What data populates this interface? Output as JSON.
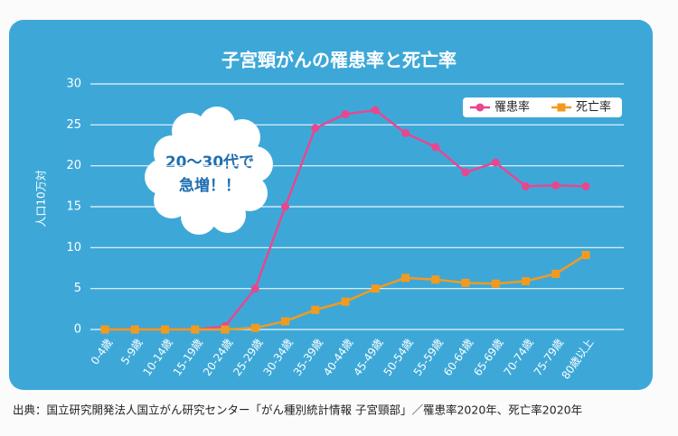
{
  "chart_data": {
    "type": "line",
    "title": "子宮頸がんの罹患率と死亡率",
    "y_label": "人口10万対",
    "annotation": [
      "20〜30代で",
      "急増！！"
    ],
    "source": "出典：国立研究開発法人国立がん研究センター「がん種別統計情報 子宮頸部」／罹患率2020年、死亡率2020年",
    "categories": [
      "0-4歳",
      "5-9歳",
      "10-14歳",
      "15-19歳",
      "20-24歳",
      "25-29歳",
      "30-34歳",
      "35-39歳",
      "40-44歳",
      "45-49歳",
      "50-54歳",
      "55-59歳",
      "60-64歳",
      "65-69歳",
      "70-74歳",
      "75-79歳",
      "80歳以上"
    ],
    "series": [
      {
        "name": "罹患率",
        "color": "#e8478f",
        "marker": "circle",
        "values": [
          0,
          0,
          0,
          0,
          0.4,
          5,
          15,
          24.6,
          26.3,
          26.8,
          24,
          22.3,
          19.2,
          20.4,
          17.5,
          17.6,
          17.5
        ]
      },
      {
        "name": "死亡率",
        "color": "#f39a1e",
        "marker": "square",
        "values": [
          0,
          0,
          0,
          0,
          0,
          0.2,
          1.0,
          2.4,
          3.4,
          5.0,
          6.3,
          6.1,
          5.7,
          5.6,
          5.9,
          6.8,
          9.1
        ]
      }
    ],
    "ylim": [
      0,
      30
    ],
    "yticks": [
      0,
      5,
      10,
      15,
      20,
      25,
      30
    ],
    "grid": true,
    "legend": "top-right"
  }
}
